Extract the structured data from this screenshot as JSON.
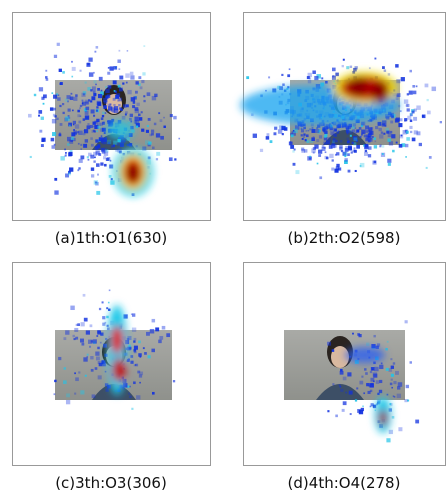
{
  "panels": [
    {
      "caption": "(a)1th:O1(630)"
    },
    {
      "caption": "(b)2th:O2(598)"
    },
    {
      "caption": "(c)3th:O3(306)"
    },
    {
      "caption": "(d)4th:O4(278)"
    }
  ]
}
